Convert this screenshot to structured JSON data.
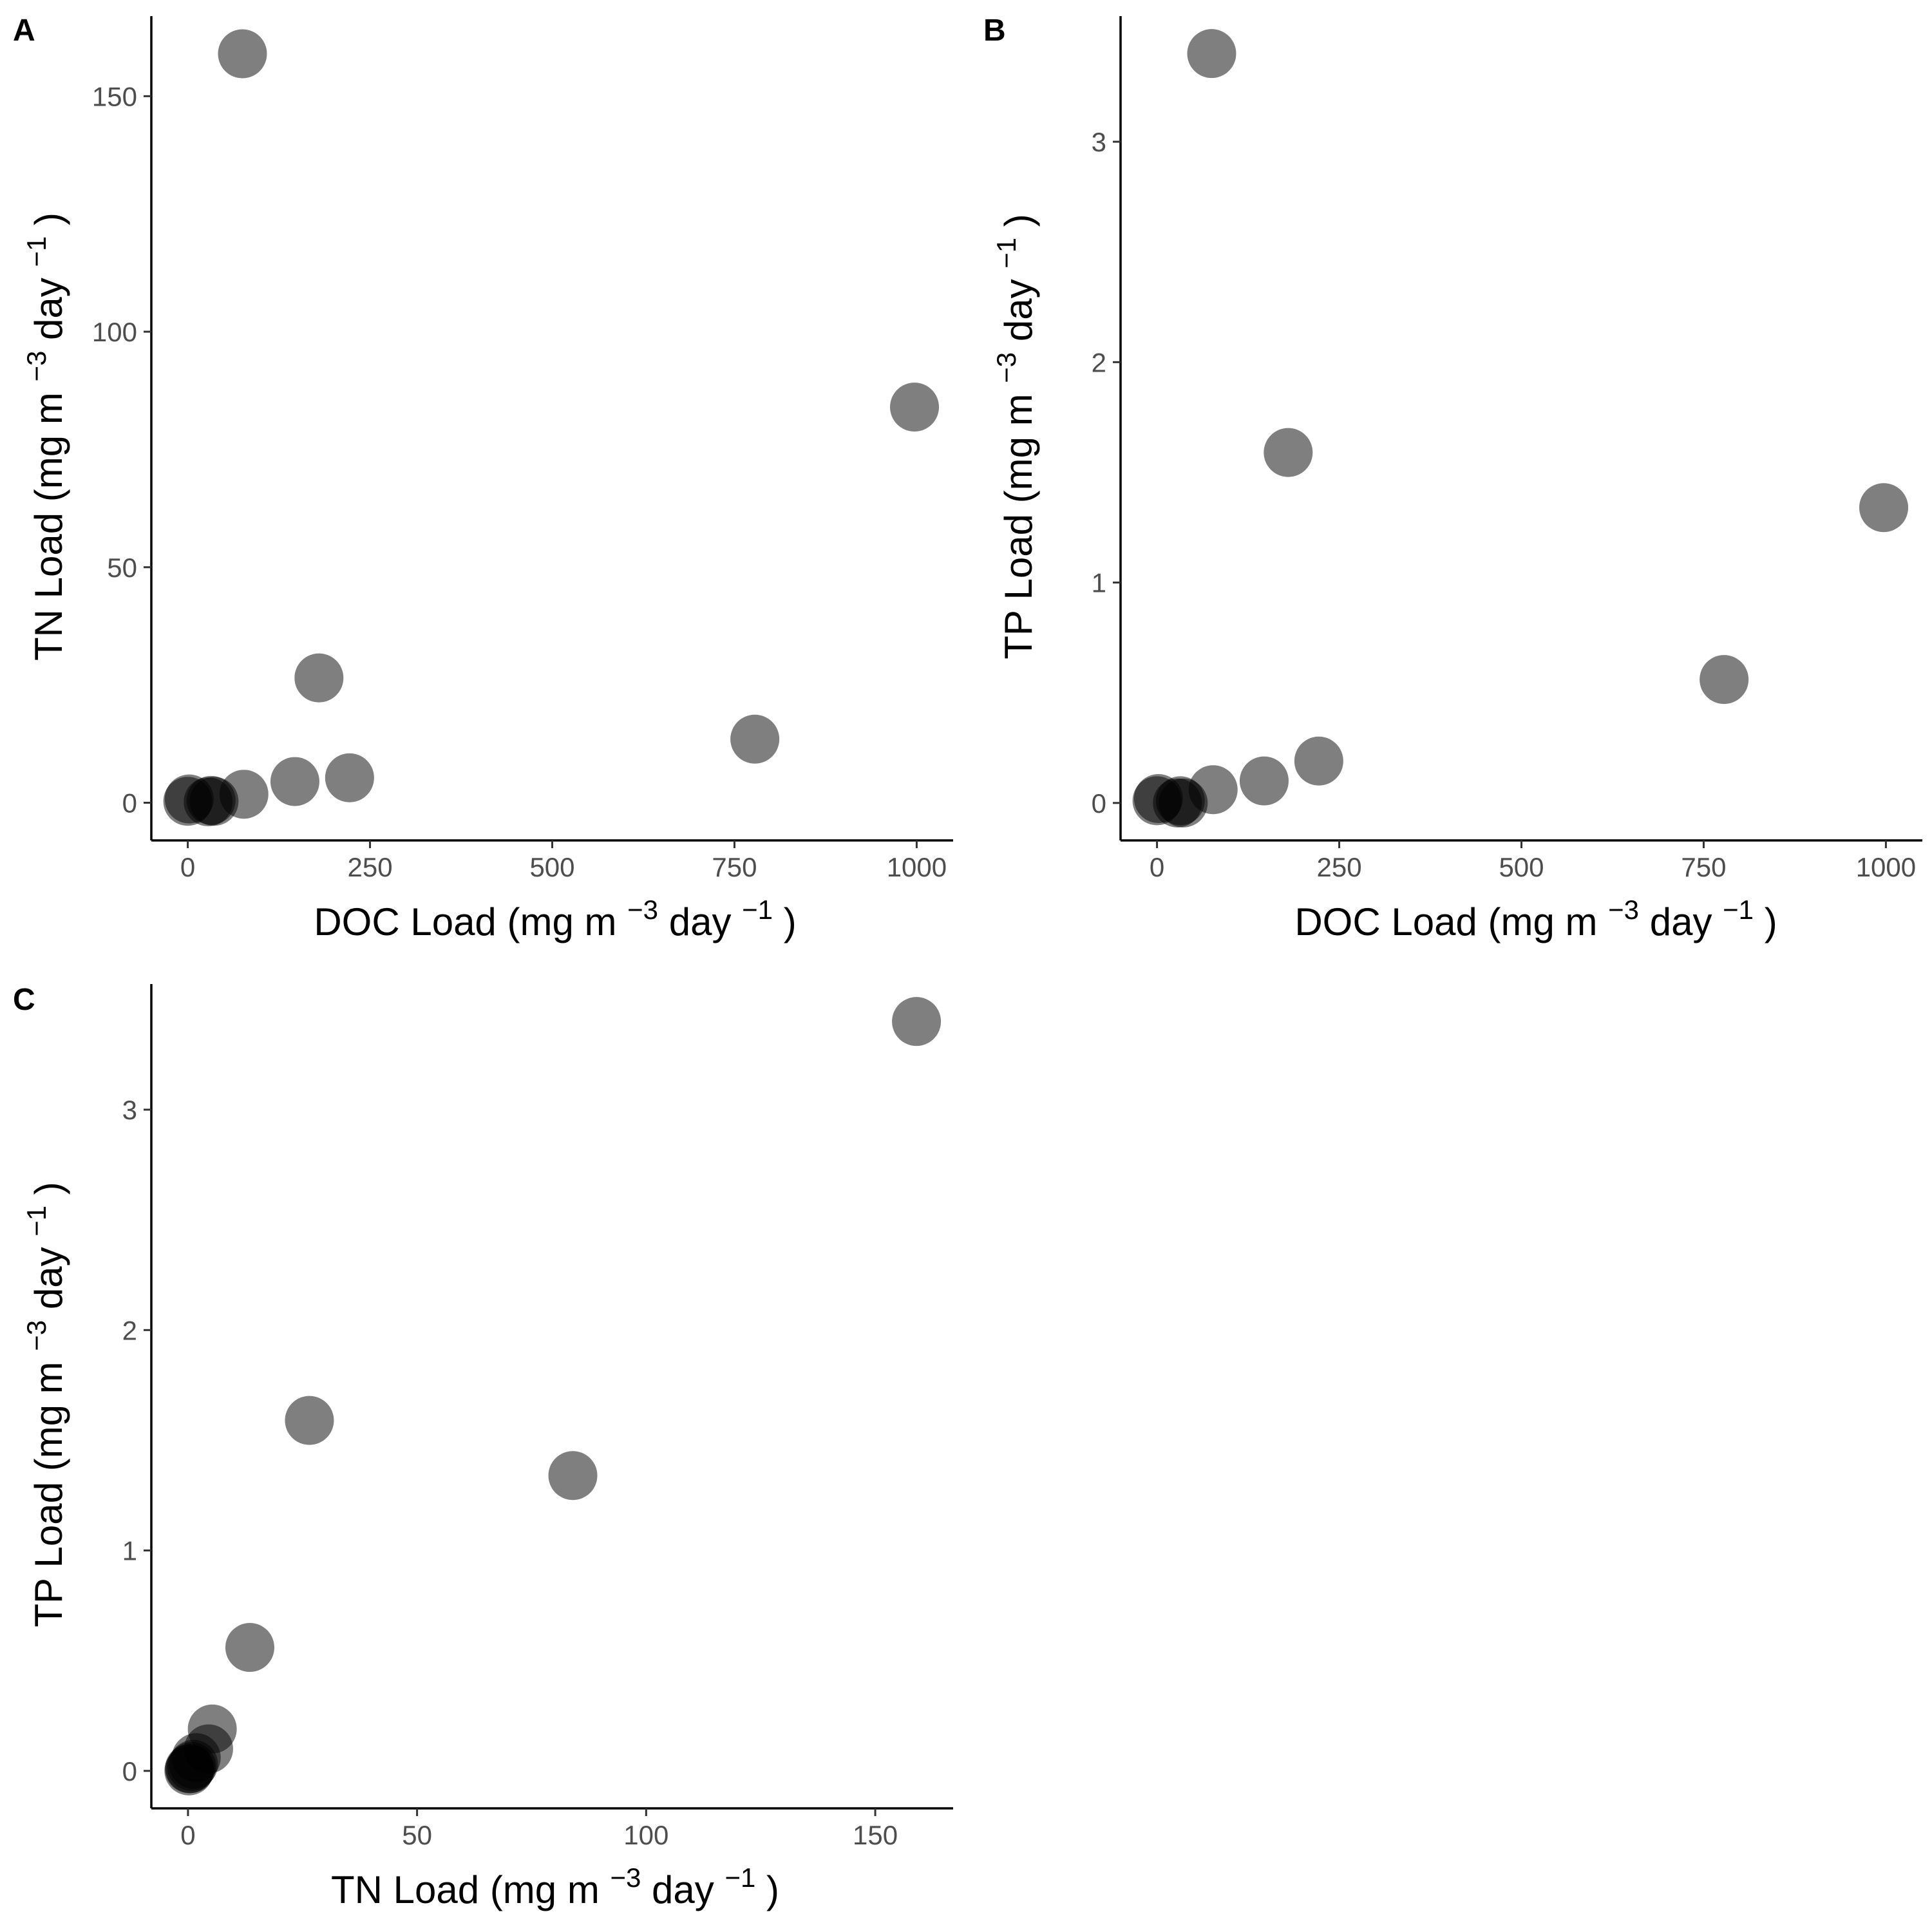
{
  "chart_data": [
    {
      "panel": "A",
      "type": "scatter",
      "title": "",
      "xlabel": "DOC Load (mg m⁻³ day⁻¹)",
      "ylabel": "TN Load (mg m⁻³ day⁻¹)",
      "xlabel_parts": {
        "main": "DOC Load",
        "unit": "mg m",
        "exp1": "−3",
        "unit2": "day",
        "exp2": "−1"
      },
      "ylabel_parts": {
        "main": "TN Load",
        "unit": "mg m",
        "exp1": "−3",
        "unit2": "day",
        "exp2": "−1"
      },
      "xlim": [
        -50,
        1050
      ],
      "ylim": [
        -8,
        167
      ],
      "xticks": [
        0,
        250,
        500,
        750,
        1000
      ],
      "yticks": [
        0,
        50,
        100,
        150
      ],
      "xtick_labels": [
        "0",
        "250",
        "500",
        "750",
        "1000"
      ],
      "ytick_labels": [
        "0",
        "50",
        "100",
        "150"
      ],
      "grid": false,
      "points": [
        {
          "x": 0,
          "y": 0.3
        },
        {
          "x": 2,
          "y": 0.8
        },
        {
          "x": 28,
          "y": 0.2
        },
        {
          "x": 32,
          "y": 0.5
        },
        {
          "x": 36,
          "y": 0.3
        },
        {
          "x": 77,
          "y": 1.8
        },
        {
          "x": 75,
          "y": 159
        },
        {
          "x": 147,
          "y": 4.5
        },
        {
          "x": 180,
          "y": 26.5
        },
        {
          "x": 222,
          "y": 5.3
        },
        {
          "x": 778,
          "y": 13.5
        },
        {
          "x": 997,
          "y": 84
        }
      ]
    },
    {
      "panel": "B",
      "type": "scatter",
      "title": "",
      "xlabel": "DOC Load (mg m⁻³ day⁻¹)",
      "ylabel": "TP Load (mg m⁻³ day⁻¹)",
      "xlabel_parts": {
        "main": "DOC Load",
        "unit": "mg m",
        "exp1": "−3",
        "unit2": "day",
        "exp2": "−1"
      },
      "ylabel_parts": {
        "main": "TP Load",
        "unit": "mg m",
        "exp1": "−3",
        "unit2": "day",
        "exp2": "−1"
      },
      "xlim": [
        -50,
        1050
      ],
      "ylim": [
        -0.17,
        3.57
      ],
      "xticks": [
        0,
        250,
        500,
        750,
        1000
      ],
      "yticks": [
        0,
        1,
        2,
        3
      ],
      "xtick_labels": [
        "0",
        "250",
        "500",
        "750",
        "1000"
      ],
      "ytick_labels": [
        "0",
        "1",
        "2",
        "3"
      ],
      "grid": false,
      "points": [
        {
          "x": 0,
          "y": 0.01
        },
        {
          "x": 2,
          "y": 0.02
        },
        {
          "x": 28,
          "y": 0.0
        },
        {
          "x": 32,
          "y": 0.01
        },
        {
          "x": 36,
          "y": 0.0
        },
        {
          "x": 77,
          "y": 0.06
        },
        {
          "x": 75,
          "y": 3.4
        },
        {
          "x": 147,
          "y": 0.1
        },
        {
          "x": 180,
          "y": 1.59
        },
        {
          "x": 222,
          "y": 0.19
        },
        {
          "x": 778,
          "y": 0.56
        },
        {
          "x": 997,
          "y": 1.34
        }
      ]
    },
    {
      "panel": "C",
      "type": "scatter",
      "title": "",
      "xlabel": "TN Load (mg m⁻³ day⁻¹)",
      "ylabel": "TP Load (mg m⁻³ day⁻¹)",
      "xlabel_parts": {
        "main": "TN Load",
        "unit": "mg m",
        "exp1": "−3",
        "unit2": "day",
        "exp2": "−1"
      },
      "ylabel_parts": {
        "main": "TP Load",
        "unit": "mg m",
        "exp1": "−3",
        "unit2": "day",
        "exp2": "−1"
      },
      "xlim": [
        -8,
        167
      ],
      "ylim": [
        -0.17,
        3.57
      ],
      "xticks": [
        0,
        50,
        100,
        150
      ],
      "yticks": [
        0,
        1,
        2,
        3
      ],
      "xtick_labels": [
        "0",
        "50",
        "100",
        "150"
      ],
      "ytick_labels": [
        "0",
        "1",
        "2",
        "3"
      ],
      "grid": false,
      "points": [
        {
          "x": 0.2,
          "y": 0.0
        },
        {
          "x": 0.5,
          "y": 0.01
        },
        {
          "x": 0.8,
          "y": 0.02
        },
        {
          "x": 0.3,
          "y": 0.01
        },
        {
          "x": 1.2,
          "y": 0.03
        },
        {
          "x": 1.8,
          "y": 0.06
        },
        {
          "x": 4.5,
          "y": 0.1
        },
        {
          "x": 5.3,
          "y": 0.19
        },
        {
          "x": 13.5,
          "y": 0.56
        },
        {
          "x": 26.5,
          "y": 1.59
        },
        {
          "x": 84,
          "y": 1.34
        },
        {
          "x": 159,
          "y": 3.4
        }
      ]
    }
  ]
}
